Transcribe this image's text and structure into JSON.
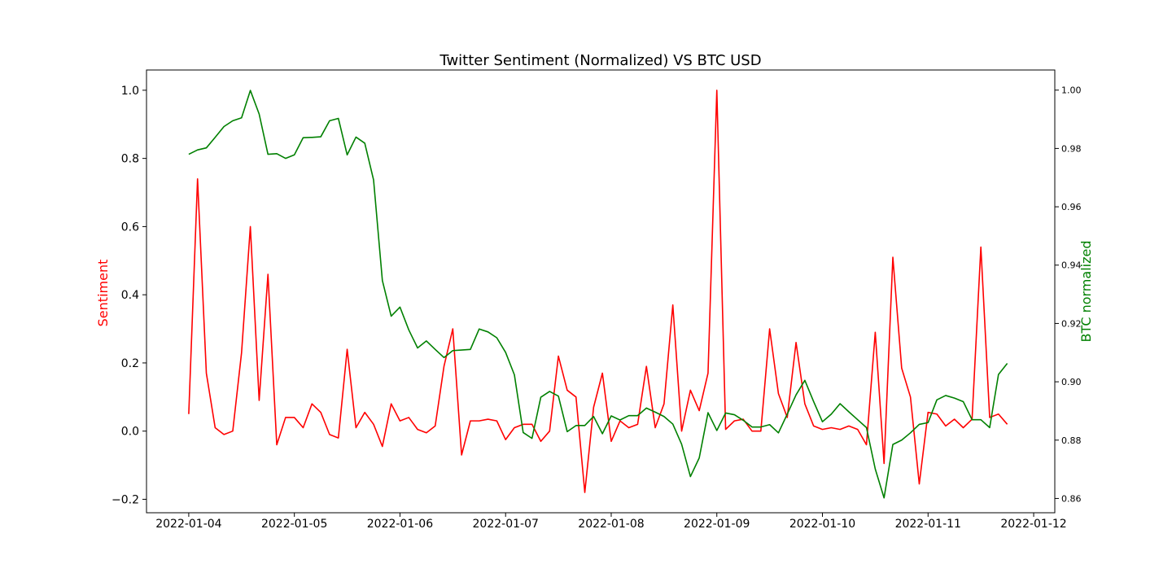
{
  "chart_data": {
    "type": "line",
    "title": "Twitter Sentiment (Normalized) VS BTC USD",
    "xlabel": "",
    "x_tick_labels": [
      "2022-01-04",
      "2022-01-05",
      "2022-01-06",
      "2022-01-07",
      "2022-01-08",
      "2022-01-09",
      "2022-01-10",
      "2022-01-11",
      "2022-01-12"
    ],
    "x_start": "2022-01-04 00:00",
    "x_step_hours": 2,
    "xlim_days_from_start": [
      -0.4,
      8.2
    ],
    "left_axis": {
      "label": "Sentiment",
      "color": "#ff0000",
      "ylim": [
        -0.2395,
        1.0594
      ],
      "ticks": [
        -0.2,
        0.0,
        0.2,
        0.4,
        0.6,
        0.8,
        1.0
      ],
      "tick_labels": [
        "−0.2",
        "0.0",
        "0.2",
        "0.4",
        "0.6",
        "0.8",
        "1.0"
      ]
    },
    "right_axis": {
      "label": "BTC normalized",
      "color": "#008000",
      "ylim": [
        0.8551,
        1.0069
      ],
      "ticks": [
        0.86,
        0.88,
        0.9,
        0.92,
        0.94,
        0.96,
        0.98,
        1.0
      ],
      "tick_labels": [
        "0.86",
        "0.88",
        "0.90",
        "0.92",
        "0.94",
        "0.96",
        "0.98",
        "1.00"
      ]
    },
    "series": [
      {
        "axis": "left",
        "color": "#ff0000",
        "values": [
          0.05,
          0.74,
          0.17,
          0.01,
          -0.01,
          0.0,
          0.23,
          0.6,
          0.09,
          0.46,
          -0.04,
          0.04,
          0.04,
          0.01,
          0.08,
          0.055,
          -0.01,
          -0.02,
          0.24,
          0.01,
          0.055,
          0.02,
          -0.045,
          0.08,
          0.03,
          0.04,
          0.005,
          -0.005,
          0.015,
          0.19,
          0.3,
          -0.07,
          0.03,
          0.03,
          0.035,
          0.03,
          -0.025,
          0.01,
          0.02,
          0.02,
          -0.03,
          0.0,
          0.22,
          0.12,
          0.1,
          -0.18,
          0.07,
          0.17,
          -0.03,
          0.03,
          0.01,
          0.02,
          0.19,
          0.01,
          0.08,
          0.37,
          0.0,
          0.12,
          0.06,
          0.17,
          1.0,
          0.005,
          0.03,
          0.035,
          0.0,
          0.0,
          0.3,
          0.11,
          0.04,
          0.26,
          0.08,
          0.015,
          0.005,
          0.01,
          0.005,
          0.015,
          0.005,
          -0.04,
          0.29,
          -0.095,
          0.51,
          0.185,
          0.1,
          -0.155,
          0.055,
          0.05,
          0.015,
          0.035,
          0.01,
          0.035,
          0.54,
          0.04,
          0.05,
          0.02
        ]
      },
      {
        "axis": "right",
        "color": "#008000",
        "values": [
          0.978,
          0.9795,
          0.9802,
          0.9838,
          0.9875,
          0.9895,
          0.9905,
          0.9999,
          0.9918,
          0.978,
          0.9782,
          0.9766,
          0.9778,
          0.9837,
          0.9838,
          0.984,
          0.9895,
          0.9903,
          0.9778,
          0.9839,
          0.9818,
          0.9692,
          0.9347,
          0.9225,
          0.9256,
          0.9178,
          0.9116,
          0.914,
          0.9111,
          0.9083,
          0.9107,
          0.9109,
          0.9111,
          0.9181,
          0.9171,
          0.9151,
          0.9101,
          0.9024,
          0.8826,
          0.8806,
          0.8947,
          0.8967,
          0.8951,
          0.8829,
          0.885,
          0.885,
          0.8881,
          0.8822,
          0.8883,
          0.8869,
          0.8884,
          0.8884,
          0.891,
          0.8896,
          0.8881,
          0.8855,
          0.8786,
          0.8675,
          0.8739,
          0.8894,
          0.8833,
          0.8893,
          0.8887,
          0.8868,
          0.8845,
          0.8845,
          0.8853,
          0.8825,
          0.8889,
          0.8955,
          0.9005,
          0.8932,
          0.8863,
          0.8889,
          0.8925,
          0.8897,
          0.887,
          0.8843,
          0.8701,
          0.8602,
          0.8785,
          0.88,
          0.8825,
          0.8854,
          0.886,
          0.8938,
          0.8953,
          0.8944,
          0.8932,
          0.887,
          0.887,
          0.8843,
          0.9025,
          0.9063
        ]
      }
    ]
  }
}
